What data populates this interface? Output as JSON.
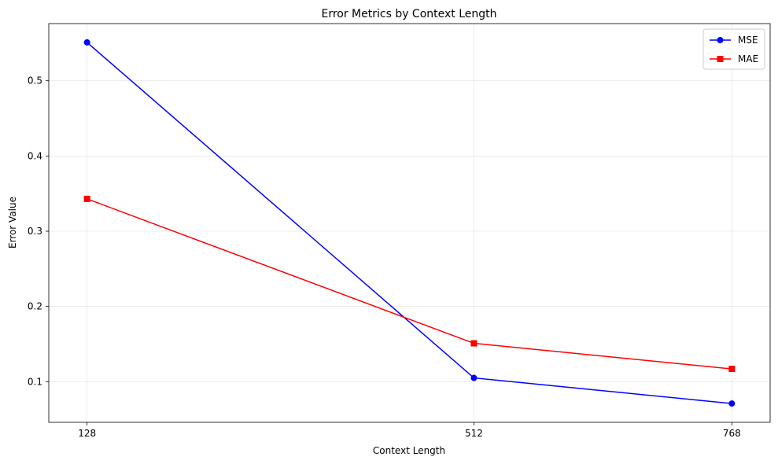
{
  "chart_data": {
    "type": "line",
    "title": "Error Metrics by Context Length",
    "xlabel": "Context Length",
    "ylabel": "Error Value",
    "x": [
      128,
      512,
      768
    ],
    "x_tick_labels": [
      "128",
      "512",
      "768"
    ],
    "y_ticks": [
      0.1,
      0.2,
      0.3,
      0.4,
      0.5
    ],
    "y_tick_labels": [
      "0.1",
      "0.2",
      "0.3",
      "0.4",
      "0.5"
    ],
    "xlim": [
      90,
      806
    ],
    "ylim": [
      0.046,
      0.576
    ],
    "grid": true,
    "legend_position": "upper right",
    "series": [
      {
        "name": "MSE",
        "values": [
          0.551,
          0.105,
          0.071
        ],
        "color": "#0000ff",
        "marker": "circle"
      },
      {
        "name": "MAE",
        "values": [
          0.343,
          0.151,
          0.117
        ],
        "color": "#ff0000",
        "marker": "square"
      }
    ]
  }
}
